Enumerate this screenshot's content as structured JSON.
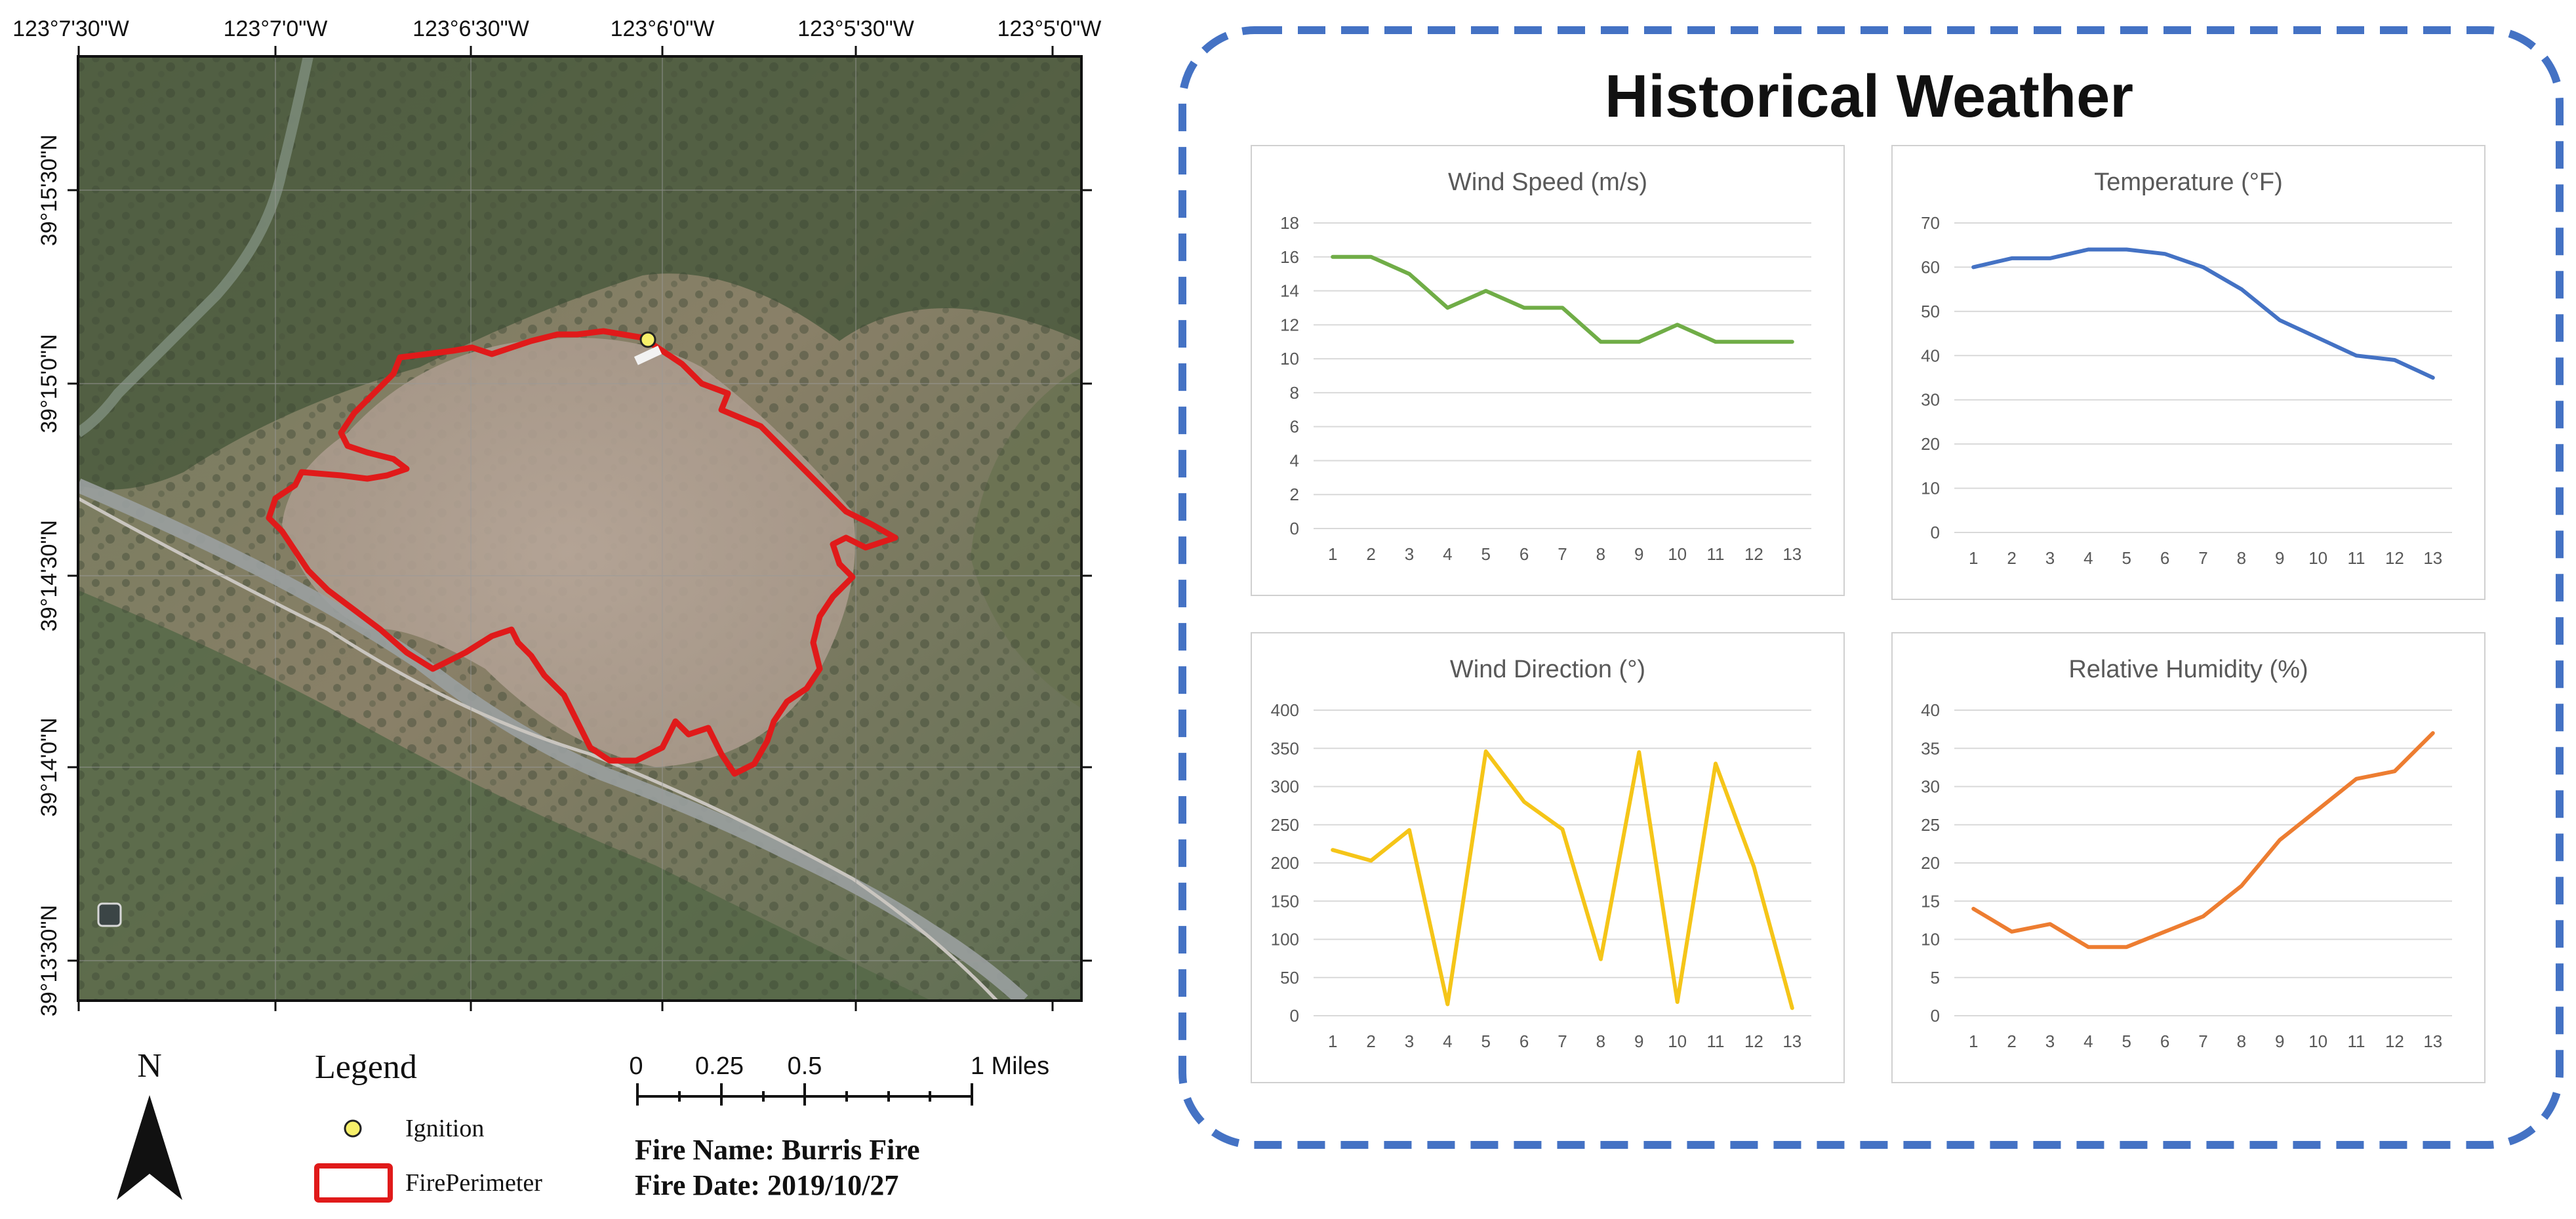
{
  "map": {
    "lon_labels": [
      "123°7'30\"W",
      "123°7'0\"W",
      "123°6'30\"W",
      "123°6'0\"W",
      "123°5'30\"W",
      "123°5'0\"W"
    ],
    "lat_labels": [
      "39°15'30\"N",
      "39°15'0\"N",
      "39°14'30\"N",
      "39°14'0\"N",
      "39°13'30\"N"
    ],
    "north_label": "N",
    "legend": {
      "title": "Legend",
      "ignition_label": "Ignition",
      "perimeter_label": "FirePerimeter",
      "ignition_color": "#f7f06a",
      "perimeter_color": "#e01a1a"
    },
    "scale": {
      "labels": [
        "0",
        "0.25",
        "0.5",
        "1 Miles"
      ]
    },
    "fire_name": "Fire Name: Burris Fire",
    "fire_date": "Fire Date: 2019/10/27"
  },
  "panel": {
    "title": "Historical Weather",
    "border_color": "#4472c4"
  },
  "chart_data": [
    {
      "type": "line",
      "title": "Wind Speed (m/s)",
      "x": [
        1,
        2,
        3,
        4,
        5,
        6,
        7,
        8,
        9,
        10,
        11,
        12,
        13
      ],
      "values": [
        16,
        16,
        15,
        13,
        14,
        13,
        13,
        11,
        11,
        12,
        11,
        11,
        11
      ],
      "ylim": [
        0,
        18
      ],
      "yticks": [
        0,
        2,
        4,
        6,
        8,
        10,
        12,
        14,
        16,
        18
      ],
      "color": "#70ad47",
      "grid": true
    },
    {
      "type": "line",
      "title": "Temperature (°F)",
      "x": [
        1,
        2,
        3,
        4,
        5,
        6,
        7,
        8,
        9,
        10,
        11,
        12,
        13
      ],
      "values": [
        60,
        62,
        62,
        64,
        64,
        63,
        60,
        55,
        48,
        44,
        40,
        39,
        35
      ],
      "ylim": [
        0,
        70
      ],
      "yticks": [
        0,
        10,
        20,
        30,
        40,
        50,
        60,
        70
      ],
      "color": "#4472c4",
      "grid": true
    },
    {
      "type": "line",
      "title": "Wind Direction (°)",
      "x": [
        1,
        2,
        3,
        4,
        5,
        6,
        7,
        8,
        9,
        10,
        11,
        12,
        13
      ],
      "values": [
        217,
        203,
        243,
        15,
        346,
        280,
        244,
        74,
        345,
        18,
        330,
        195,
        10
      ],
      "ylim": [
        0,
        400
      ],
      "yticks": [
        0,
        50,
        100,
        150,
        200,
        250,
        300,
        350,
        400
      ],
      "color": "#f5c518",
      "grid": true
    },
    {
      "type": "line",
      "title": "Relative Humidity (%)",
      "x": [
        1,
        2,
        3,
        4,
        5,
        6,
        7,
        8,
        9,
        10,
        11,
        12,
        13
      ],
      "values": [
        14,
        11,
        12,
        9,
        9,
        11,
        13,
        17,
        23,
        27,
        31,
        32,
        37
      ],
      "ylim": [
        0,
        40
      ],
      "yticks": [
        0,
        5,
        10,
        15,
        20,
        25,
        30,
        35,
        40
      ],
      "color": "#ed7d31",
      "grid": true
    }
  ]
}
